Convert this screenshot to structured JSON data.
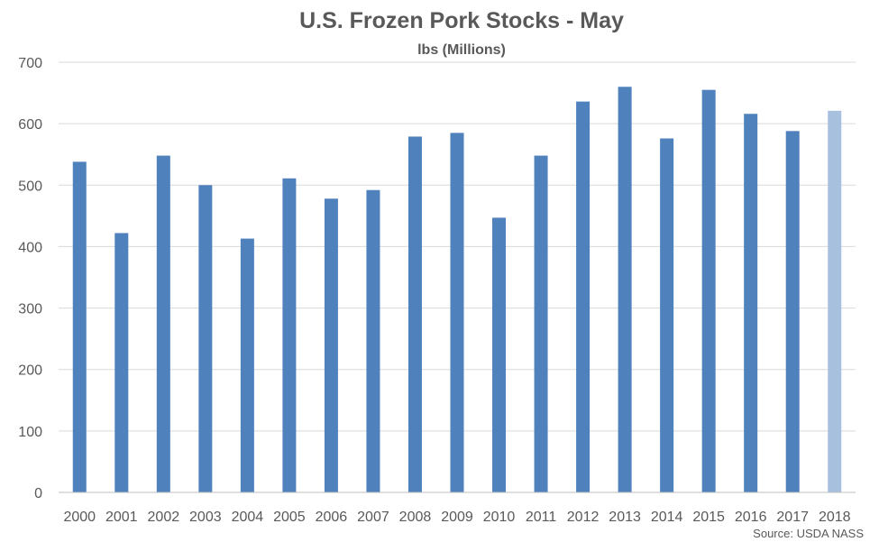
{
  "chart_data": {
    "type": "bar",
    "title": "U.S. Frozen Pork Stocks - May",
    "subtitle": "lbs (Millions)",
    "categories": [
      "2000",
      "2001",
      "2002",
      "2003",
      "2004",
      "2005",
      "2006",
      "2007",
      "2008",
      "2009",
      "2010",
      "2011",
      "2012",
      "2013",
      "2014",
      "2015",
      "2016",
      "2017",
      "2018"
    ],
    "values": [
      538,
      422,
      548,
      500,
      413,
      511,
      478,
      492,
      579,
      585,
      447,
      548,
      636,
      660,
      576,
      655,
      616,
      588,
      621
    ],
    "ylim": [
      0,
      700
    ],
    "yticks": [
      "0",
      "100",
      "200",
      "300",
      "400",
      "500",
      "600",
      "700"
    ],
    "grid": true,
    "bar_color": "#4f81bd",
    "highlight_color": "#a7c0de",
    "highlight_index": 18,
    "source": "Source: USDA NASS"
  }
}
